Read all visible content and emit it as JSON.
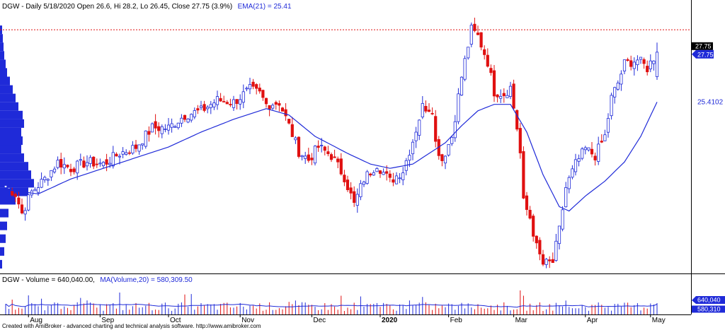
{
  "header": {
    "prefix": "DGW - Daily 5/18/2020 Open 26.6, Hi 28.2, Lo 26.45, Close 27.75 (3.9%)",
    "ema_text": "EMA(21) = 25.41"
  },
  "volume_header": {
    "prefix": "DGW - Volume = 640,040.00,",
    "ma_text": "MA(Volume,20) = 580,309.50"
  },
  "footer": "Created with AmiBroker - advanced charting and technical analysis software. http://www.amibroker.com",
  "colors": {
    "up": "#1f2ad8",
    "down": "#e01010",
    "ema": "#1f2ad8",
    "ref_line": "#e01010",
    "volume_profile": "#1f2ad8",
    "axis": "#000000"
  },
  "chart_data": [
    {
      "type": "candlestick",
      "title": "DGW - Daily 5/18/2020 Open 26.6, Hi 28.2, Lo 26.45, Close 27.75 (3.9%)",
      "ylim": [
        17.6,
        29.6
      ],
      "last": {
        "date": "5/18/2020",
        "open": 26.6,
        "high": 28.2,
        "low": 26.45,
        "close": 27.75,
        "change_pct": 3.9
      },
      "price_labels": [
        "27.75",
        "27.75",
        "25.4102"
      ],
      "x_tick_labels": [
        "Aug",
        "Sep",
        "Oct",
        "Nov",
        "Dec",
        "2020",
        "Feb",
        "Mar",
        "Apr",
        "May"
      ],
      "x_tick_positions": [
        7,
        29,
        50,
        72,
        94,
        115,
        136,
        156,
        178,
        198
      ],
      "anchors": [
        [
          0,
          21.5
        ],
        [
          3,
          21.1
        ],
        [
          5,
          20.2
        ],
        [
          8,
          21.2
        ],
        [
          12,
          21.8
        ],
        [
          16,
          22.6
        ],
        [
          20,
          22.3
        ],
        [
          25,
          22.6
        ],
        [
          30,
          22.5
        ],
        [
          35,
          23.0
        ],
        [
          40,
          23.3
        ],
        [
          45,
          24.2
        ],
        [
          50,
          24.2
        ],
        [
          55,
          24.8
        ],
        [
          60,
          25.0
        ],
        [
          65,
          25.5
        ],
        [
          70,
          25.4
        ],
        [
          75,
          26.0
        ],
        [
          78,
          25.8
        ],
        [
          80,
          25.3
        ],
        [
          84,
          25.4
        ],
        [
          87,
          24.3
        ],
        [
          90,
          23.1
        ],
        [
          93,
          22.7
        ],
        [
          96,
          23.3
        ],
        [
          100,
          22.9
        ],
        [
          104,
          21.9
        ],
        [
          107,
          20.6
        ],
        [
          110,
          21.8
        ],
        [
          114,
          22.5
        ],
        [
          118,
          21.7
        ],
        [
          122,
          22.2
        ],
        [
          125,
          23.6
        ],
        [
          128,
          25.2
        ],
        [
          131,
          25.1
        ],
        [
          132,
          23.5
        ],
        [
          134,
          22.7
        ],
        [
          137,
          23.8
        ],
        [
          140,
          26.6
        ],
        [
          143,
          28.8
        ],
        [
          145,
          28.5
        ],
        [
          148,
          27.3
        ],
        [
          150,
          25.9
        ],
        [
          153,
          25.8
        ],
        [
          155,
          26.1
        ],
        [
          157,
          24.2
        ],
        [
          158,
          23.0
        ],
        [
          159,
          20.7
        ],
        [
          161,
          20.0
        ],
        [
          163,
          18.6
        ],
        [
          165,
          17.8
        ],
        [
          168,
          17.9
        ],
        [
          170,
          19.4
        ],
        [
          172,
          21.4
        ],
        [
          175,
          22.5
        ],
        [
          178,
          23.2
        ],
        [
          181,
          22.9
        ],
        [
          184,
          23.8
        ],
        [
          186,
          25.6
        ],
        [
          188,
          26.3
        ],
        [
          190,
          27.2
        ],
        [
          194,
          27.4
        ],
        [
          197,
          27.0
        ],
        [
          200,
          27.75
        ]
      ],
      "ema_points": [
        [
          0,
          21.3
        ],
        [
          10,
          21.1
        ],
        [
          20,
          21.8
        ],
        [
          30,
          22.3
        ],
        [
          40,
          22.8
        ],
        [
          50,
          23.3
        ],
        [
          60,
          24.0
        ],
        [
          70,
          24.6
        ],
        [
          80,
          25.1
        ],
        [
          87,
          24.8
        ],
        [
          95,
          23.8
        ],
        [
          105,
          23.0
        ],
        [
          112,
          22.5
        ],
        [
          118,
          22.3
        ],
        [
          125,
          22.5
        ],
        [
          130,
          23.0
        ],
        [
          135,
          23.5
        ],
        [
          140,
          24.3
        ],
        [
          145,
          25.0
        ],
        [
          150,
          25.3
        ],
        [
          155,
          25.3
        ],
        [
          160,
          24.0
        ],
        [
          165,
          22.0
        ],
        [
          170,
          20.5
        ],
        [
          173,
          20.3
        ],
        [
          178,
          21.0
        ],
        [
          184,
          21.7
        ],
        [
          190,
          22.6
        ],
        [
          195,
          23.8
        ],
        [
          200,
          25.41
        ]
      ],
      "profile": {
        "bins": [
          [
            17.6,
            3
          ],
          [
            18.2,
            6
          ],
          [
            18.8,
            8
          ],
          [
            19.4,
            10
          ],
          [
            20.0,
            12
          ],
          [
            20.6,
            22
          ],
          [
            21.0,
            40
          ],
          [
            21.4,
            48
          ],
          [
            21.8,
            44
          ],
          [
            22.2,
            40
          ],
          [
            22.6,
            34
          ],
          [
            23.0,
            30
          ],
          [
            23.4,
            32
          ],
          [
            23.8,
            30
          ],
          [
            24.2,
            34
          ],
          [
            24.6,
            32
          ],
          [
            25.0,
            26
          ],
          [
            25.4,
            22
          ],
          [
            25.8,
            18
          ],
          [
            26.2,
            14
          ],
          [
            26.6,
            10
          ],
          [
            27.0,
            8
          ],
          [
            27.4,
            6
          ],
          [
            27.8,
            5
          ],
          [
            28.2,
            4
          ],
          [
            28.6,
            3
          ]
        ],
        "bin_size": 0.4
      },
      "reference_line": 28.8
    },
    {
      "type": "bar",
      "title": "DGW - Volume = 640,040.00, MA(Volume,20) = 580,309.50",
      "last_volume": 640040,
      "ma_volume_20": 580309.5,
      "value_labels": [
        "640,040",
        "580,310"
      ],
      "ylim": [
        0,
        1600000
      ],
      "series": [
        {
          "name": "Volume",
          "values": []
        },
        {
          "name": "MA(Volume,20)",
          "values": []
        }
      ]
    }
  ]
}
